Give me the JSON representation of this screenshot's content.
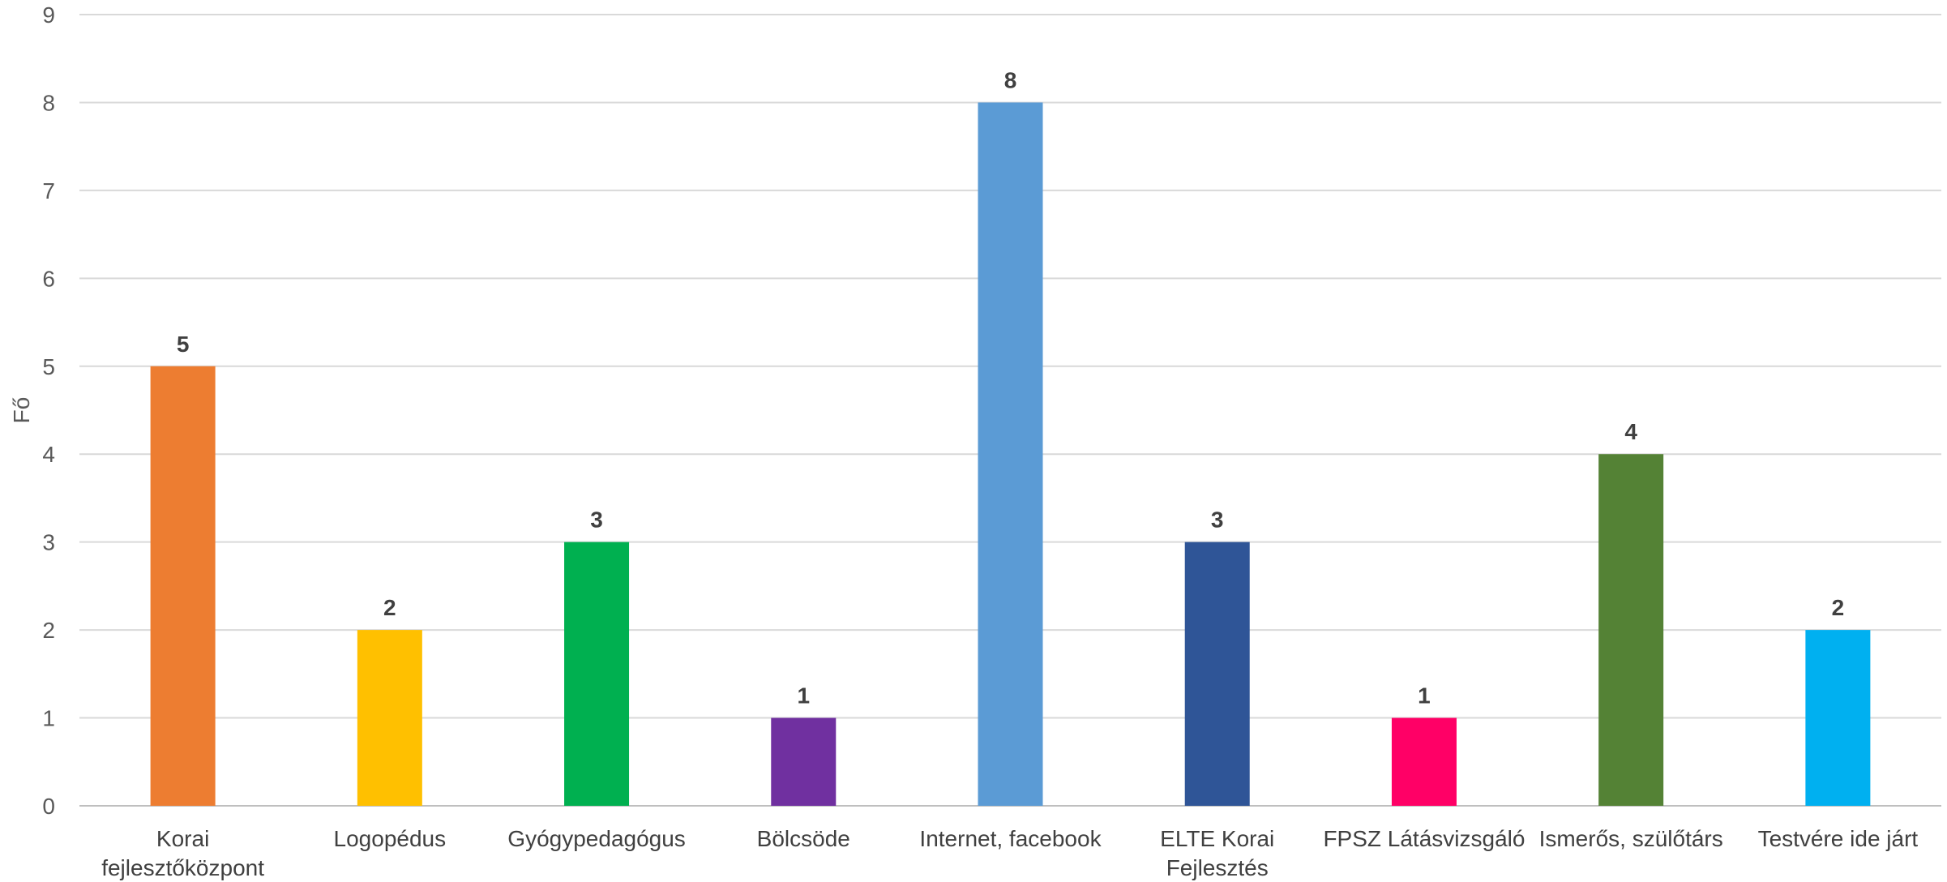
{
  "chart_data": {
    "type": "bar",
    "title": "",
    "xlabel": "",
    "ylabel": "Fő",
    "ylim": [
      0,
      9
    ],
    "yticks": [
      0,
      1,
      2,
      3,
      4,
      5,
      6,
      7,
      8,
      9
    ],
    "grid": true,
    "legend": "none",
    "categories": [
      "Korai fejlesztőközpont",
      "Logopédus",
      "Gyógypedagógus",
      "Bölcsöde",
      "Internet, facebook",
      "ELTE Korai Fejlesztés",
      "FPSZ Látásvizsgáló",
      "Ismerős, szülőtárs",
      "Testvére ide járt"
    ],
    "category_label_lines": [
      [
        "Korai",
        "fejlesztőközpont"
      ],
      [
        "Logopédus"
      ],
      [
        "Gyógypedagógus"
      ],
      [
        "Bölcsöde"
      ],
      [
        "Internet, facebook"
      ],
      [
        "ELTE Korai",
        "Fejlesztés"
      ],
      [
        "FPSZ Látásvizsgáló"
      ],
      [
        "Ismerős, szülőtárs"
      ],
      [
        "Testvére ide járt"
      ]
    ],
    "values": [
      5,
      2,
      3,
      1,
      8,
      3,
      1,
      4,
      2
    ],
    "colors": [
      "#ED7D31",
      "#FFC000",
      "#00B050",
      "#7030A0",
      "#5B9BD5",
      "#2F5597",
      "#FF0066",
      "#548235",
      "#00B0F0"
    ],
    "gridline_color": "#D9D9D9",
    "axis_color": "#BFBFBF"
  }
}
